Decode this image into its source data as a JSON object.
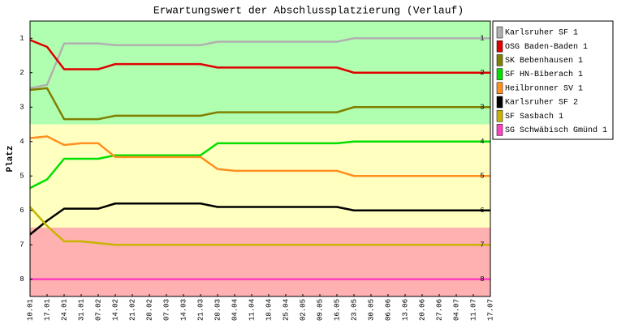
{
  "chart_data": {
    "type": "line",
    "title": "Erwartungswert der Abschlussplatzierung (Verlauf)",
    "y_label": "Platz",
    "categories": [
      "10.01",
      "17.01",
      "24.01",
      "31.01",
      "07.02",
      "14.02",
      "21.02",
      "28.02",
      "07.03",
      "14.03",
      "21.03",
      "28.03",
      "04.04",
      "11.04",
      "18.04",
      "25.04",
      "02.05",
      "09.05",
      "16.05",
      "23.05",
      "30.05",
      "06.06",
      "13.06",
      "20.06",
      "27.06",
      "04.07",
      "11.07",
      "17.07"
    ],
    "ylim": [
      8.5,
      0.5
    ],
    "yticks": [
      1,
      2,
      3,
      4,
      5,
      6,
      7,
      8
    ],
    "legend": "right",
    "bands": [
      {
        "from": 0.5,
        "to": 3.5,
        "color": "#b0ffb0"
      },
      {
        "from": 3.5,
        "to": 6.5,
        "color": "#ffffc0"
      },
      {
        "from": 6.5,
        "to": 8.5,
        "color": "#ffb0b0"
      }
    ],
    "series": [
      {
        "name": "Karlsruher SF 1",
        "color": "#b0b0b0",
        "values": [
          2.45,
          2.35,
          1.15,
          1.15,
          1.15,
          1.2,
          1.2,
          1.2,
          1.2,
          1.2,
          1.2,
          1.1,
          1.1,
          1.1,
          1.1,
          1.1,
          1.1,
          1.1,
          1.1,
          1.0,
          1.0,
          1.0,
          1.0,
          1.0,
          1.0,
          1.0,
          1.0,
          1.0
        ]
      },
      {
        "name": "OSG Baden-Baden 1",
        "color": "#e00000",
        "values": [
          1.05,
          1.25,
          1.9,
          1.9,
          1.9,
          1.75,
          1.75,
          1.75,
          1.75,
          1.75,
          1.75,
          1.85,
          1.85,
          1.85,
          1.85,
          1.85,
          1.85,
          1.85,
          1.85,
          2.0,
          2.0,
          2.0,
          2.0,
          2.0,
          2.0,
          2.0,
          2.0,
          2.0
        ]
      },
      {
        "name": "SK Bebenhausen 1",
        "color": "#808000",
        "values": [
          2.5,
          2.45,
          3.35,
          3.35,
          3.35,
          3.25,
          3.25,
          3.25,
          3.25,
          3.25,
          3.25,
          3.15,
          3.15,
          3.15,
          3.15,
          3.15,
          3.15,
          3.15,
          3.15,
          3.0,
          3.0,
          3.0,
          3.0,
          3.0,
          3.0,
          3.0,
          3.0,
          3.0
        ]
      },
      {
        "name": "SF HN-Biberach 1",
        "color": "#00e000",
        "values": [
          5.35,
          5.1,
          4.5,
          4.5,
          4.5,
          4.4,
          4.4,
          4.4,
          4.4,
          4.4,
          4.4,
          4.05,
          4.05,
          4.05,
          4.05,
          4.05,
          4.05,
          4.05,
          4.05,
          4.0,
          4.0,
          4.0,
          4.0,
          4.0,
          4.0,
          4.0,
          4.0,
          4.0
        ]
      },
      {
        "name": "Heilbronner SV 1",
        "color": "#ff9020",
        "values": [
          3.9,
          3.85,
          4.1,
          4.05,
          4.05,
          4.45,
          4.45,
          4.45,
          4.45,
          4.45,
          4.45,
          4.8,
          4.85,
          4.85,
          4.85,
          4.85,
          4.85,
          4.85,
          4.85,
          5.0,
          5.0,
          5.0,
          5.0,
          5.0,
          5.0,
          5.0,
          5.0,
          5.0
        ]
      },
      {
        "name": "Karlsruher SF 2",
        "color": "#000000",
        "values": [
          6.7,
          6.3,
          5.95,
          5.95,
          5.95,
          5.8,
          5.8,
          5.8,
          5.8,
          5.8,
          5.8,
          5.9,
          5.9,
          5.9,
          5.9,
          5.9,
          5.9,
          5.9,
          5.9,
          6.0,
          6.0,
          6.0,
          6.0,
          6.0,
          6.0,
          6.0,
          6.0,
          6.0
        ]
      },
      {
        "name": "SF Sasbach 1",
        "color": "#c8b400",
        "values": [
          5.9,
          6.45,
          6.9,
          6.9,
          6.95,
          7.0,
          7.0,
          7.0,
          7.0,
          7.0,
          7.0,
          7.0,
          7.0,
          7.0,
          7.0,
          7.0,
          7.0,
          7.0,
          7.0,
          7.0,
          7.0,
          7.0,
          7.0,
          7.0,
          7.0,
          7.0,
          7.0,
          7.0
        ]
      },
      {
        "name": "SG Schwäbisch Gmünd 1",
        "color": "#ff40c0",
        "values": [
          8,
          8,
          8,
          8,
          8,
          8,
          8,
          8,
          8,
          8,
          8,
          8,
          8,
          8,
          8,
          8,
          8,
          8,
          8,
          8,
          8,
          8,
          8,
          8,
          8,
          8,
          8,
          8
        ]
      }
    ]
  }
}
